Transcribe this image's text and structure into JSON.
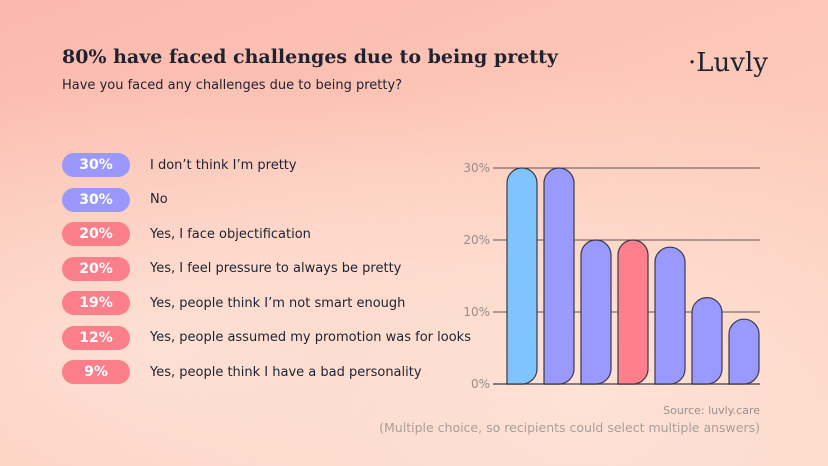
{
  "header": {
    "title": "80% have faced challenges due to being pretty",
    "subtitle": "Have you faced any challenges due to being pretty?",
    "logo": "·Luvly"
  },
  "colors": {
    "purple": "#9a98fb",
    "pink": "#fb7f8b",
    "blue": "#80c4ff"
  },
  "legend": [
    {
      "pct": "30%",
      "label": "I don’t think I’m pretty",
      "color": "purple"
    },
    {
      "pct": "30%",
      "label": "No",
      "color": "purple"
    },
    {
      "pct": "20%",
      "label": "Yes, I face objectification",
      "color": "pink"
    },
    {
      "pct": "20%",
      "label": "Yes, I feel pressure to always be pretty",
      "color": "pink"
    },
    {
      "pct": "19%",
      "label": "Yes, people think I’m not smart enough",
      "color": "pink"
    },
    {
      "pct": "12%",
      "label": "Yes, people assumed my promotion was for looks",
      "color": "pink"
    },
    {
      "pct": "9%",
      "label": "Yes, people think I have a bad personality",
      "color": "pink"
    }
  ],
  "chart_data": {
    "type": "bar",
    "categories": [
      "I don’t think I’m pretty",
      "No",
      "Yes, I face objectification",
      "Yes, I feel pressure to always be pretty",
      "Yes, people think I’m not smart enough",
      "Yes, people assumed my promotion was for looks",
      "Yes, people think I have a bad personality"
    ],
    "values": [
      30,
      30,
      20,
      20,
      19,
      12,
      9
    ],
    "bar_colors": [
      "#80c4ff",
      "#9999ff",
      "#9999ff",
      "#ff808c",
      "#9999ff",
      "#9999ff",
      "#9999ff"
    ],
    "ylim": [
      0,
      30
    ],
    "yticks": [
      "0%",
      "10%",
      "20%",
      "30%"
    ],
    "grid": true
  },
  "footer": {
    "source": "Source: luvly.care",
    "note": "(Multiple choice, so recipients could select multiple answers)"
  }
}
